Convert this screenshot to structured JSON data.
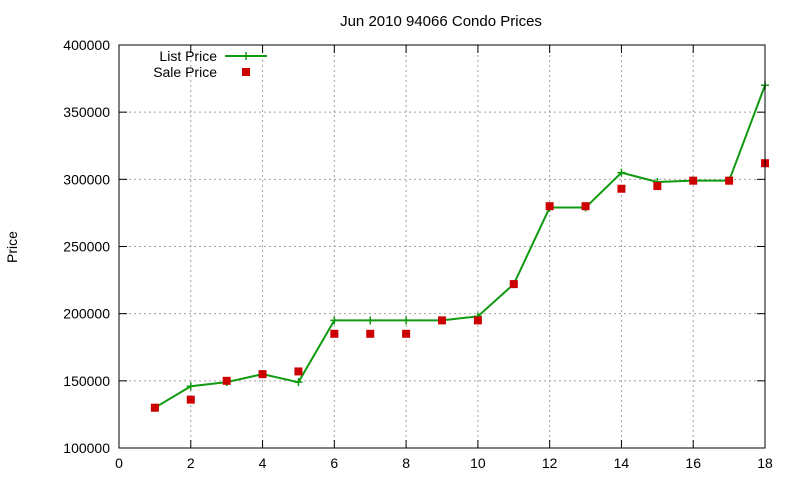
{
  "chart_data": {
    "type": "line",
    "title": "Jun 2010 94066 Condo Prices",
    "xlabel": "",
    "ylabel": "Price",
    "xlim": [
      0,
      18
    ],
    "ylim": [
      100000,
      400000
    ],
    "xticks": [
      0,
      2,
      4,
      6,
      8,
      10,
      12,
      14,
      16,
      18
    ],
    "yticks": [
      100000,
      150000,
      200000,
      250000,
      300000,
      350000,
      400000
    ],
    "grid": true,
    "legend_position": "top-left",
    "series": [
      {
        "name": "List Price",
        "style": "line-points",
        "color": "#109a10",
        "x": [
          1,
          2,
          3,
          4,
          5,
          6,
          7,
          8,
          9,
          10,
          11,
          12,
          13,
          14,
          15,
          16,
          17,
          18
        ],
        "values": [
          130000,
          146000,
          149000,
          155000,
          149000,
          195000,
          195000,
          195000,
          195000,
          198000,
          222000,
          279000,
          279000,
          305000,
          298000,
          299000,
          299000,
          370000
        ]
      },
      {
        "name": "Sale Price",
        "style": "points",
        "color": "#cc0000",
        "x": [
          1,
          2,
          3,
          4,
          5,
          6,
          7,
          8,
          9,
          10,
          11,
          12,
          13,
          14,
          15,
          16,
          17,
          18
        ],
        "values": [
          130000,
          136000,
          150000,
          155000,
          157000,
          185000,
          185000,
          185000,
          195000,
          195000,
          222000,
          280000,
          280000,
          293000,
          295000,
          299000,
          299000,
          312000
        ]
      }
    ]
  }
}
